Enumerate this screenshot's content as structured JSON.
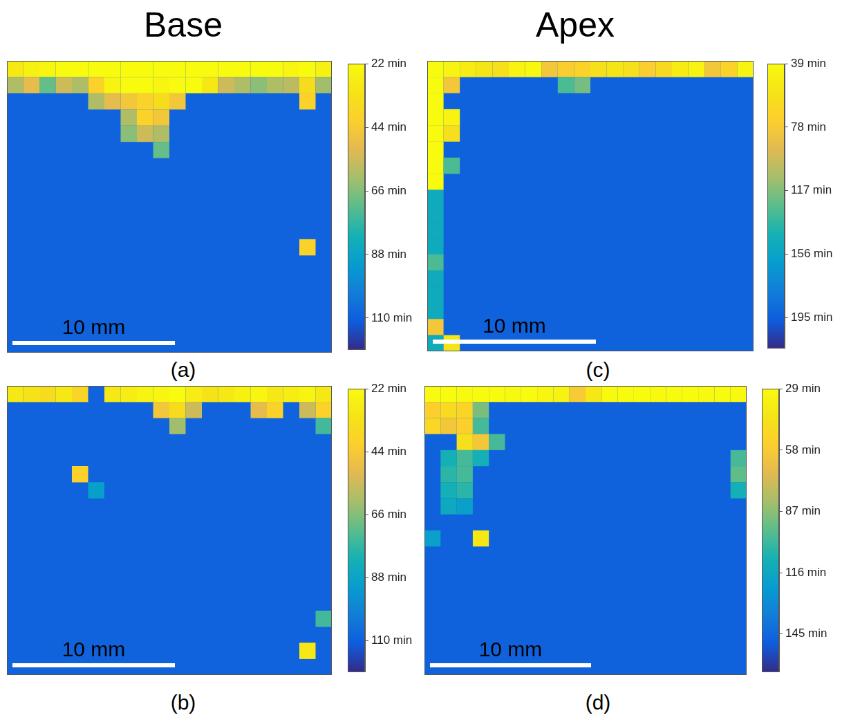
{
  "column_titles": [
    "Base",
    "Apex"
  ],
  "chart_data": [
    {
      "type": "heatmap",
      "panel": "(a)",
      "xlim": [
        0,
        20
      ],
      "ylim": [
        0,
        18
      ],
      "tick_labels": false,
      "cell": 1,
      "background": 109,
      "scale_bar": {
        "length": 10,
        "label": "10 mm"
      },
      "colorbar": {
        "lim": [
          22,
          121
        ],
        "ticks": [
          {
            "value": 22,
            "label": "22 min"
          },
          {
            "value": 44,
            "label": "44 min"
          },
          {
            "value": 66,
            "label": "66 min"
          },
          {
            "value": 88,
            "label": "88 min"
          },
          {
            "value": 110,
            "label": "110 min"
          }
        ]
      },
      "cells": [
        [
          0.5,
          0.5,
          30
        ],
        [
          1.5,
          0.5,
          26
        ],
        [
          2.5,
          0.5,
          24
        ],
        [
          3.5,
          0.5,
          22
        ],
        [
          4.5,
          0.5,
          22
        ],
        [
          5.5,
          0.5,
          22
        ],
        [
          6.5,
          0.5,
          22
        ],
        [
          7.5,
          0.5,
          22
        ],
        [
          8.5,
          0.5,
          22
        ],
        [
          9.5,
          0.5,
          22
        ],
        [
          10.5,
          0.5,
          22
        ],
        [
          11.5,
          0.5,
          22
        ],
        [
          12.5,
          0.5,
          22
        ],
        [
          13.5,
          0.5,
          22
        ],
        [
          14.5,
          0.5,
          22
        ],
        [
          15.5,
          0.5,
          22
        ],
        [
          16.5,
          0.5,
          22
        ],
        [
          17.5,
          0.5,
          24
        ],
        [
          18.5,
          0.5,
          22
        ],
        [
          19.5,
          0.5,
          26
        ],
        [
          0.5,
          1.5,
          60
        ],
        [
          1.5,
          1.5,
          50
        ],
        [
          2.5,
          1.5,
          70
        ],
        [
          3.5,
          1.5,
          55
        ],
        [
          4.5,
          1.5,
          60
        ],
        [
          5.5,
          1.5,
          40
        ],
        [
          6.5,
          1.5,
          25
        ],
        [
          7.5,
          1.5,
          22
        ],
        [
          8.5,
          1.5,
          22
        ],
        [
          9.5,
          1.5,
          24
        ],
        [
          10.5,
          1.5,
          22
        ],
        [
          11.5,
          1.5,
          22
        ],
        [
          12.5,
          1.5,
          30
        ],
        [
          13.5,
          1.5,
          55
        ],
        [
          14.5,
          1.5,
          60
        ],
        [
          15.5,
          1.5,
          65
        ],
        [
          16.5,
          1.5,
          60
        ],
        [
          17.5,
          1.5,
          58
        ],
        [
          18.5,
          1.5,
          35
        ],
        [
          19.5,
          1.5,
          62
        ],
        [
          5.5,
          2.5,
          60
        ],
        [
          6.5,
          2.5,
          50
        ],
        [
          7.5,
          2.5,
          45
        ],
        [
          8.5,
          2.5,
          40
        ],
        [
          9.5,
          2.5,
          35
        ],
        [
          10.5,
          2.5,
          45
        ],
        [
          18.5,
          2.5,
          40
        ],
        [
          7.5,
          3.5,
          60
        ],
        [
          8.5,
          3.5,
          40
        ],
        [
          9.5,
          3.5,
          45
        ],
        [
          7.5,
          4.5,
          65
        ],
        [
          8.5,
          4.5,
          55
        ],
        [
          9.5,
          4.5,
          60
        ],
        [
          9.5,
          5.5,
          70
        ],
        [
          18.5,
          11.5,
          40
        ]
      ]
    },
    {
      "type": "heatmap",
      "panel": "(b)",
      "xlim": [
        0,
        20
      ],
      "ylim": [
        0,
        18
      ],
      "tick_labels": false,
      "cell": 1,
      "background": 109,
      "scale_bar": {
        "length": 10,
        "label": "10 mm"
      },
      "colorbar": {
        "lim": [
          22,
          121
        ],
        "ticks": [
          {
            "value": 22,
            "label": "22 min"
          },
          {
            "value": 44,
            "label": "44 min"
          },
          {
            "value": 66,
            "label": "66 min"
          },
          {
            "value": 88,
            "label": "88 min"
          },
          {
            "value": 110,
            "label": "110 min"
          }
        ]
      },
      "cells": [
        [
          0.5,
          0.5,
          30
        ],
        [
          1.5,
          0.5,
          32
        ],
        [
          2.5,
          0.5,
          35
        ],
        [
          3.5,
          0.5,
          30
        ],
        [
          4.5,
          0.5,
          38
        ],
        [
          6.5,
          0.5,
          30
        ],
        [
          7.5,
          0.5,
          28
        ],
        [
          8.5,
          0.5,
          25
        ],
        [
          9.5,
          0.5,
          24
        ],
        [
          10.5,
          0.5,
          22
        ],
        [
          11.5,
          0.5,
          28
        ],
        [
          12.5,
          0.5,
          32
        ],
        [
          13.5,
          0.5,
          30
        ],
        [
          14.5,
          0.5,
          26
        ],
        [
          15.5,
          0.5,
          24
        ],
        [
          16.5,
          0.5,
          30
        ],
        [
          17.5,
          0.5,
          28
        ],
        [
          18.5,
          0.5,
          25
        ],
        [
          19.5,
          0.5,
          30
        ],
        [
          9.5,
          1.5,
          45
        ],
        [
          10.5,
          1.5,
          35
        ],
        [
          11.5,
          1.5,
          55
        ],
        [
          15.5,
          1.5,
          50
        ],
        [
          16.5,
          1.5,
          40
        ],
        [
          18.5,
          1.5,
          55
        ],
        [
          19.5,
          1.5,
          40
        ],
        [
          10.5,
          2.5,
          62
        ],
        [
          19.5,
          2.5,
          75
        ],
        [
          4.5,
          5.5,
          40
        ],
        [
          5.5,
          6.5,
          90
        ],
        [
          19.5,
          14.5,
          75
        ],
        [
          18.5,
          16.5,
          30
        ]
      ]
    },
    {
      "type": "heatmap",
      "panel": "(c)",
      "xlim": [
        0,
        20
      ],
      "ylim": [
        0,
        18
      ],
      "tick_labels": false,
      "cell": 1,
      "background": 194,
      "scale_bar": {
        "length": 10,
        "label": "10 mm"
      },
      "colorbar": {
        "lim": [
          39,
          214
        ],
        "ticks": [
          {
            "value": 39,
            "label": "39 min"
          },
          {
            "value": 78,
            "label": "78 min"
          },
          {
            "value": 117,
            "label": "117 min"
          },
          {
            "value": 156,
            "label": "156 min"
          },
          {
            "value": 195,
            "label": "195 min"
          }
        ]
      },
      "cells": [
        [
          0.5,
          0.5,
          39
        ],
        [
          0.5,
          1.5,
          39
        ],
        [
          0.5,
          2.5,
          39
        ],
        [
          0.5,
          3.5,
          39
        ],
        [
          0.5,
          4.5,
          39
        ],
        [
          0.5,
          5.5,
          39
        ],
        [
          0.5,
          6.5,
          39
        ],
        [
          0.5,
          7.5,
          39
        ],
        [
          0.5,
          8.5,
          150
        ],
        [
          0.5,
          9.5,
          150
        ],
        [
          0.5,
          10.5,
          150
        ],
        [
          0.5,
          11.5,
          150
        ],
        [
          0.5,
          12.5,
          130
        ],
        [
          0.5,
          13.5,
          150
        ],
        [
          0.5,
          14.5,
          150
        ],
        [
          0.5,
          15.5,
          150
        ],
        [
          0.5,
          16.5,
          80
        ],
        [
          0.5,
          17.5,
          150
        ],
        [
          1.5,
          0.5,
          45
        ],
        [
          2.5,
          0.5,
          50
        ],
        [
          3.5,
          0.5,
          55
        ],
        [
          4.5,
          0.5,
          60
        ],
        [
          5.5,
          0.5,
          45
        ],
        [
          6.5,
          0.5,
          42
        ],
        [
          7.5,
          0.5,
          80
        ],
        [
          8.5,
          0.5,
          75
        ],
        [
          9.5,
          0.5,
          70
        ],
        [
          10.5,
          0.5,
          60
        ],
        [
          11.5,
          0.5,
          55
        ],
        [
          12.5,
          0.5,
          60
        ],
        [
          13.5,
          0.5,
          75
        ],
        [
          14.5,
          0.5,
          65
        ],
        [
          15.5,
          0.5,
          50
        ],
        [
          16.5,
          0.5,
          45
        ],
        [
          17.5,
          0.5,
          80
        ],
        [
          18.5,
          0.5,
          70
        ],
        [
          19.5,
          0.5,
          45
        ],
        [
          1.5,
          1.5,
          80
        ],
        [
          8.5,
          1.5,
          130
        ],
        [
          9.5,
          1.5,
          120
        ],
        [
          1.5,
          3.5,
          45
        ],
        [
          1.5,
          4.5,
          60
        ],
        [
          1.5,
          6.5,
          130
        ],
        [
          1.5,
          17.5,
          55
        ]
      ]
    },
    {
      "type": "heatmap",
      "panel": "(d)",
      "xlim": [
        0,
        20
      ],
      "ylim": [
        0,
        18
      ],
      "tick_labels": false,
      "cell": 1,
      "background": 147,
      "scale_bar": {
        "length": 10,
        "label": "10 mm"
      },
      "colorbar": {
        "lim": [
          29,
          163
        ],
        "ticks": [
          {
            "value": 29,
            "label": "29 min"
          },
          {
            "value": 58,
            "label": "58 min"
          },
          {
            "value": 87,
            "label": "87 min"
          },
          {
            "value": 116,
            "label": "116 min"
          },
          {
            "value": 145,
            "label": "145 min"
          }
        ]
      },
      "cells": [
        [
          0.5,
          0.5,
          29
        ],
        [
          1.5,
          0.5,
          29
        ],
        [
          2.5,
          0.5,
          30
        ],
        [
          3.5,
          0.5,
          29
        ],
        [
          4.5,
          0.5,
          29
        ],
        [
          5.5,
          0.5,
          30
        ],
        [
          6.5,
          0.5,
          29
        ],
        [
          7.5,
          0.5,
          32
        ],
        [
          8.5,
          0.5,
          34
        ],
        [
          9.5,
          0.5,
          58
        ],
        [
          10.5,
          0.5,
          40
        ],
        [
          11.5,
          0.5,
          30
        ],
        [
          12.5,
          0.5,
          29
        ],
        [
          13.5,
          0.5,
          29
        ],
        [
          14.5,
          0.5,
          30
        ],
        [
          15.5,
          0.5,
          29
        ],
        [
          16.5,
          0.5,
          29
        ],
        [
          17.5,
          0.5,
          30
        ],
        [
          18.5,
          0.5,
          29
        ],
        [
          19.5,
          0.5,
          30
        ],
        [
          0.5,
          1.5,
          55
        ],
        [
          1.5,
          1.5,
          48
        ],
        [
          2.5,
          1.5,
          52
        ],
        [
          3.5,
          1.5,
          90
        ],
        [
          0.5,
          2.5,
          50
        ],
        [
          1.5,
          2.5,
          60
        ],
        [
          2.5,
          2.5,
          55
        ],
        [
          3.5,
          2.5,
          100
        ],
        [
          2.5,
          3.5,
          45
        ],
        [
          3.5,
          3.5,
          60
        ],
        [
          4.5,
          3.5,
          100
        ],
        [
          1.5,
          4.5,
          110
        ],
        [
          2.5,
          4.5,
          100
        ],
        [
          3.5,
          4.5,
          110
        ],
        [
          1.5,
          5.5,
          105
        ],
        [
          2.5,
          5.5,
          100
        ],
        [
          1.5,
          6.5,
          110
        ],
        [
          2.5,
          6.5,
          105
        ],
        [
          1.5,
          7.5,
          115
        ],
        [
          2.5,
          7.5,
          120
        ],
        [
          3.5,
          9.5,
          40
        ],
        [
          0.5,
          9.5,
          120
        ],
        [
          19.5,
          4.5,
          100
        ],
        [
          19.5,
          5.5,
          95
        ],
        [
          19.5,
          6.5,
          110
        ]
      ]
    }
  ]
}
